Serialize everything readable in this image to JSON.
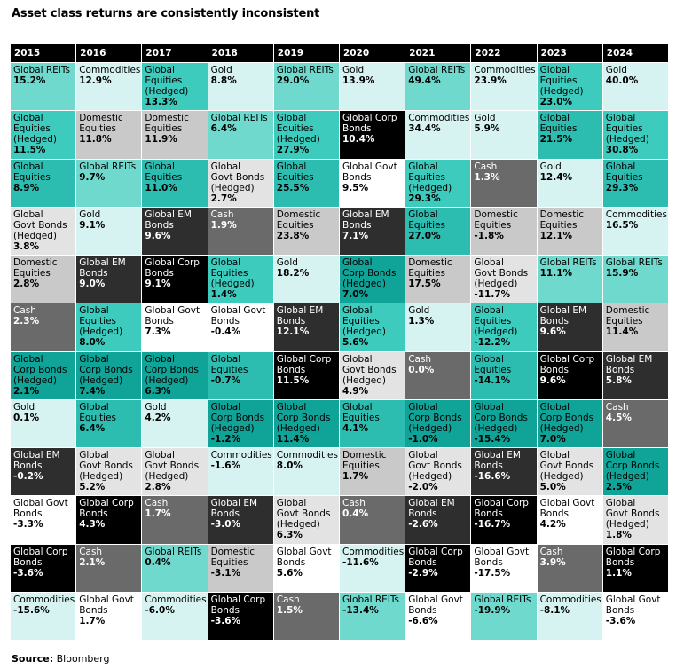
{
  "title": "Asset class returns are consistently inconsistent",
  "source_label": "Source:",
  "source_value": "Bloomberg",
  "colors": {
    "Global REITs": "#6fd9cd",
    "Commodities": "#d6f3f1",
    "Global Equities (Hedged)": "#3ccbbd",
    "Gold": "#d6f3f1",
    "Global Equities": "#2dbdb0",
    "Domestic Equities": "#c9c9c9",
    "Global Corp Bonds": "#10a397",
    "Global Govt Bonds (Hedged)": "#e3e3e3",
    "Global EM Bonds": "#2e2e2e",
    "Cash": "#6a6a6a",
    "Global Corp Bonds (Hedged)": "#16a99d",
    "Global Govt Bonds": "#ffffff",
    "Global Equities 2017": "#2dbdb0"
  },
  "chart_data": {
    "type": "table",
    "title": "Asset class returns are consistently inconsistent",
    "years": [
      "2015",
      "2016",
      "2017",
      "2018",
      "2019",
      "2020",
      "2021",
      "2022",
      "2023",
      "2024"
    ],
    "columns": [
      [
        {
          "label": "Global REITs",
          "value": "15.2%"
        },
        {
          "label": "Global\nEquities\n(Hedged)",
          "value": "11.5%"
        },
        {
          "label": "Global\nEquities",
          "value": "8.9%"
        },
        {
          "label": "Global\nGovt Bonds\n(Hedged)",
          "value": "3.8%"
        },
        {
          "label": "Domestic\nEquities",
          "value": "2.8%"
        },
        {
          "label": "Cash",
          "value": "2.3%"
        },
        {
          "label": "Global\nCorp Bonds\n(Hedged)",
          "value": "2.1%"
        },
        {
          "label": "Gold",
          "value": "0.1%"
        },
        {
          "label": "Global EM\nBonds",
          "value": "-0.2%"
        },
        {
          "label": "Global Govt\nBonds",
          "value": "-3.3%"
        },
        {
          "label": "Global Corp\nBonds",
          "value": "-3.6%"
        },
        {
          "label": "Commodities",
          "value": "-15.6%"
        }
      ],
      [
        {
          "label": "Commodities",
          "value": "12.9%"
        },
        {
          "label": "Domestic\nEquities",
          "value": "11.8%"
        },
        {
          "label": "Global REITs",
          "value": "9.7%"
        },
        {
          "label": "Gold",
          "value": "9.1%"
        },
        {
          "label": "Global EM\nBonds",
          "value": "9.0%"
        },
        {
          "label": "Global\nEquities\n(Hedged)",
          "value": "8.0%"
        },
        {
          "label": "Global\nCorp Bonds\n(Hedged)",
          "value": "7.4%"
        },
        {
          "label": "Global\nEquities",
          "value": "6.4%"
        },
        {
          "label": "Global\nGovt Bonds\n(Hedged)",
          "value": "5.2%"
        },
        {
          "label": "Global Corp\nBonds",
          "value": "4.3%"
        },
        {
          "label": "Cash",
          "value": "2.1%"
        },
        {
          "label": "Global Govt\nBonds",
          "value": "1.7%"
        }
      ],
      [
        {
          "label": "Global\nEquities\n(Hedged)",
          "value": "13.3%"
        },
        {
          "label": "Domestic\nEquities",
          "value": "11.9%"
        },
        {
          "label": "Global\nEquities",
          "value": "11.0%"
        },
        {
          "label": "Global EM\nBonds",
          "value": "9.6%"
        },
        {
          "label": "Global Corp\nBonds",
          "value": "9.1%"
        },
        {
          "label": "Global Govt\nBonds",
          "value": "7.3%"
        },
        {
          "label": "Global\nCorp Bonds\n(Hedged)",
          "value": "6.3%"
        },
        {
          "label": "Gold",
          "value": "4.2%"
        },
        {
          "label": "Global\nGovt Bonds\n(Hedged)",
          "value": "2.8%"
        },
        {
          "label": "Cash",
          "value": "1.7%"
        },
        {
          "label": "Global REITs",
          "value": "0.4%"
        },
        {
          "label": "Commodities",
          "value": "-6.0%"
        }
      ],
      [
        {
          "label": "Gold",
          "value": "8.8%"
        },
        {
          "label": "Global REITs",
          "value": "6.4%"
        },
        {
          "label": "Global\nGovt Bonds\n(Hedged)",
          "value": "2.7%"
        },
        {
          "label": "Cash",
          "value": "1.9%"
        },
        {
          "label": "Global\nEquities\n(Hedged)",
          "value": "1.4%"
        },
        {
          "label": "Global Govt\nBonds",
          "value": "-0.4%"
        },
        {
          "label": "Global\nEquities",
          "value": "-0.7%"
        },
        {
          "label": "Global\nCorp Bonds\n(Hedged)",
          "value": "-1.2%"
        },
        {
          "label": "Commodities",
          "value": "-1.6%"
        },
        {
          "label": "Global EM\nBonds",
          "value": "-3.0%"
        },
        {
          "label": "Domestic\nEquities",
          "value": "-3.1%"
        },
        {
          "label": "Global Corp\nBonds",
          "value": "-3.6%"
        }
      ],
      [
        {
          "label": "Global REITs",
          "value": "29.0%"
        },
        {
          "label": "Global\nEquities\n(Hedged)",
          "value": "27.9%"
        },
        {
          "label": "Global\nEquities",
          "value": "25.5%"
        },
        {
          "label": "Domestic\nEquities",
          "value": "23.8%"
        },
        {
          "label": "Gold",
          "value": "18.2%"
        },
        {
          "label": "Global EM\nBonds",
          "value": "12.1%"
        },
        {
          "label": "Global Corp\nBonds",
          "value": "11.5%"
        },
        {
          "label": "Global\nCorp Bonds\n(Hedged)",
          "value": "11.4%"
        },
        {
          "label": "Commodities",
          "value": "8.0%"
        },
        {
          "label": "Global\nGovt Bonds\n(Hedged)",
          "value": "6.3%"
        },
        {
          "label": "Global Govt\nBonds",
          "value": "5.6%"
        },
        {
          "label": "Cash",
          "value": "1.5%"
        }
      ],
      [
        {
          "label": "Gold",
          "value": "13.9%"
        },
        {
          "label": "Global Corp\nBonds",
          "value": "10.4%"
        },
        {
          "label": "Global Govt\nBonds",
          "value": "9.5%"
        },
        {
          "label": "Global EM\nBonds",
          "value": "7.1%"
        },
        {
          "label": "Global\nCorp Bonds\n(Hedged)",
          "value": "7.0%"
        },
        {
          "label": "Global\nEquities\n(Hedged)",
          "value": "5.6%"
        },
        {
          "label": "Global\nGovt Bonds\n(Hedged)",
          "value": "4.9%"
        },
        {
          "label": "Global\nEquities",
          "value": "4.1%"
        },
        {
          "label": "Domestic\nEquities",
          "value": "1.7%"
        },
        {
          "label": "Cash",
          "value": "0.4%"
        },
        {
          "label": "Commodities",
          "value": "-11.6%"
        },
        {
          "label": "Global REITs",
          "value": "-13.4%"
        }
      ],
      [
        {
          "label": "Global REITs",
          "value": "49.4%"
        },
        {
          "label": "Commodities",
          "value": "34.4%"
        },
        {
          "label": "Global\nEquities\n(Hedged)",
          "value": "29.3%"
        },
        {
          "label": "Global\nEquities",
          "value": "27.0%"
        },
        {
          "label": "Domestic\nEquities",
          "value": "17.5%"
        },
        {
          "label": "Gold",
          "value": "1.3%"
        },
        {
          "label": "Cash",
          "value": "0.0%"
        },
        {
          "label": "Global\nCorp Bonds\n(Hedged)",
          "value": "-1.0%"
        },
        {
          "label": "Global\nGovt Bonds\n(Hedged)",
          "value": "-2.0%"
        },
        {
          "label": "Global EM\nBonds",
          "value": "-2.6%"
        },
        {
          "label": "Global Corp\nBonds",
          "value": "-2.9%"
        },
        {
          "label": "Global Govt\nBonds",
          "value": "-6.6%"
        }
      ],
      [
        {
          "label": "Commodities",
          "value": "23.9%"
        },
        {
          "label": "Gold",
          "value": "5.9%"
        },
        {
          "label": "Cash",
          "value": "1.3%"
        },
        {
          "label": "Domestic\nEquities",
          "value": "-1.8%"
        },
        {
          "label": "Global\nGovt Bonds\n(Hedged)",
          "value": "-11.7%"
        },
        {
          "label": "Global\nEquities\n(Hedged)",
          "value": "-12.2%"
        },
        {
          "label": "Global\nEquities",
          "value": "-14.1%"
        },
        {
          "label": "Global\nCorp Bonds\n(Hedged)",
          "value": "-15.4%"
        },
        {
          "label": "Global EM\nBonds",
          "value": "-16.6%"
        },
        {
          "label": "Global Corp\nBonds",
          "value": "-16.7%"
        },
        {
          "label": "Global Govt\nBonds",
          "value": "-17.5%"
        },
        {
          "label": "Global REITs",
          "value": "-19.9%"
        }
      ],
      [
        {
          "label": "Global\nEquities\n(Hedged)",
          "value": "23.0%"
        },
        {
          "label": "Global\nEquities",
          "value": "21.5%"
        },
        {
          "label": "Gold",
          "value": "12.4%"
        },
        {
          "label": "Domestic\nEquities",
          "value": "12.1%"
        },
        {
          "label": "Global REITs",
          "value": "11.1%"
        },
        {
          "label": "Global EM\nBonds",
          "value": "9.6%"
        },
        {
          "label": "Global Corp\nBonds",
          "value": "9.6%"
        },
        {
          "label": "Global\nCorp Bonds\n(Hedged)",
          "value": "7.0%"
        },
        {
          "label": "Global\nGovt Bonds\n(Hedged)",
          "value": "5.0%"
        },
        {
          "label": "Global Govt\nBonds",
          "value": "4.2%"
        },
        {
          "label": "Cash",
          "value": "3.9%"
        },
        {
          "label": "Commodities",
          "value": "-8.1%"
        }
      ],
      [
        {
          "label": "Gold",
          "value": "40.0%"
        },
        {
          "label": "Global\nEquities\n(Hedged)",
          "value": "30.8%"
        },
        {
          "label": "Global\nEquities",
          "value": "29.3%"
        },
        {
          "label": "Commodities",
          "value": "16.5%"
        },
        {
          "label": "Global REITs",
          "value": "15.9%"
        },
        {
          "label": "Domestic\nEquities",
          "value": "11.4%"
        },
        {
          "label": "Global EM\nBonds",
          "value": "5.8%"
        },
        {
          "label": "Cash",
          "value": "4.5%"
        },
        {
          "label": "Global\nCorp Bonds\n(Hedged)",
          "value": "2.5%"
        },
        {
          "label": "Global\nGovt Bonds\n(Hedged)",
          "value": "1.8%"
        },
        {
          "label": "Global Corp\nBonds",
          "value": "1.1%"
        },
        {
          "label": "Global Govt\nBonds",
          "value": "-3.6%"
        }
      ]
    ]
  }
}
